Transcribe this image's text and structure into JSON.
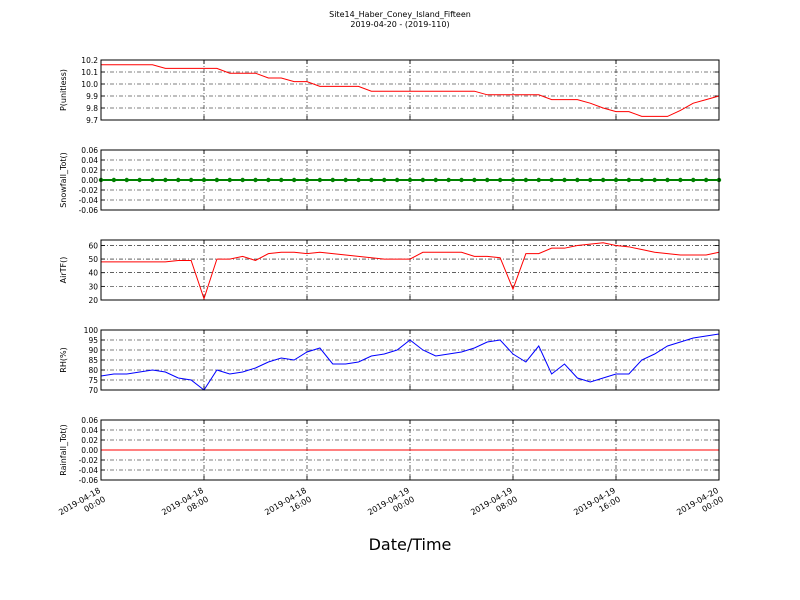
{
  "figure": {
    "title": "Site14_Haber_Coney_Island_Fifteen",
    "subtitle": "2019-04-20 - (2019-110)",
    "xlabel": "Date/Time",
    "xlim": [
      "2019-04-18 00:00",
      "2019-04-20 00:00"
    ],
    "xticks": [
      "2019-04-18 00:00",
      "2019-04-18 08:00",
      "2019-04-18 16:00",
      "2019-04-19 00:00",
      "2019-04-19 08:00",
      "2019-04-19 16:00",
      "2019-04-20 00:00"
    ]
  },
  "chart_data": [
    {
      "type": "line",
      "ylabel": "P(unitless)",
      "color": "#ff0000",
      "grid": true,
      "marker": false,
      "ylim": [
        9.7,
        10.2
      ],
      "yticks": [
        9.7,
        9.8,
        9.9,
        {
          "value": 10,
          "label": "10.0"
        },
        10.1,
        10.2
      ],
      "x": [
        "2019-04-18 00:00",
        "2019-04-18 01:00",
        "2019-04-18 02:00",
        "2019-04-18 03:00",
        "2019-04-18 04:00",
        "2019-04-18 05:00",
        "2019-04-18 06:00",
        "2019-04-18 07:00",
        "2019-04-18 08:00",
        "2019-04-18 09:00",
        "2019-04-18 10:00",
        "2019-04-18 11:00",
        "2019-04-18 12:00",
        "2019-04-18 13:00",
        "2019-04-18 14:00",
        "2019-04-18 15:00",
        "2019-04-18 16:00",
        "2019-04-18 17:00",
        "2019-04-18 18:00",
        "2019-04-18 19:00",
        "2019-04-18 20:00",
        "2019-04-18 21:00",
        "2019-04-18 22:00",
        "2019-04-18 23:00",
        "2019-04-19 00:00",
        "2019-04-19 01:00",
        "2019-04-19 02:00",
        "2019-04-19 03:00",
        "2019-04-19 04:00",
        "2019-04-19 05:00",
        "2019-04-19 06:00",
        "2019-04-19 07:00",
        "2019-04-19 08:00",
        "2019-04-19 09:00",
        "2019-04-19 10:00",
        "2019-04-19 11:00",
        "2019-04-19 12:00",
        "2019-04-19 13:00",
        "2019-04-19 14:00",
        "2019-04-19 15:00",
        "2019-04-19 16:00",
        "2019-04-19 17:00",
        "2019-04-19 18:00",
        "2019-04-19 19:00",
        "2019-04-19 20:00",
        "2019-04-19 21:00",
        "2019-04-19 22:00",
        "2019-04-19 23:00",
        "2019-04-20 00:00"
      ],
      "values": [
        10.16,
        10.16,
        10.16,
        10.16,
        10.16,
        10.13,
        10.13,
        10.13,
        10.13,
        10.13,
        10.09,
        10.09,
        10.09,
        10.05,
        10.05,
        10.02,
        10.02,
        9.98,
        9.98,
        9.98,
        9.98,
        9.94,
        9.94,
        9.94,
        9.94,
        9.94,
        9.94,
        9.94,
        9.94,
        9.94,
        9.91,
        9.91,
        9.91,
        9.91,
        9.91,
        9.87,
        9.87,
        9.87,
        9.84,
        9.8,
        9.77,
        9.77,
        9.73,
        9.73,
        9.73,
        9.78,
        9.84,
        9.87,
        9.9
      ]
    },
    {
      "type": "line",
      "ylabel": "Snowfall_Tot()",
      "color": "#008000",
      "grid": true,
      "marker": true,
      "ylim": [
        -0.06,
        0.06
      ],
      "yticks": [
        -0.06,
        -0.04,
        -0.02,
        {
          "value": 0,
          "label": "0.00"
        },
        0.02,
        0.04,
        0.06
      ],
      "x": [
        "2019-04-18 00:00",
        "2019-04-18 01:00",
        "2019-04-18 02:00",
        "2019-04-18 03:00",
        "2019-04-18 04:00",
        "2019-04-18 05:00",
        "2019-04-18 06:00",
        "2019-04-18 07:00",
        "2019-04-18 08:00",
        "2019-04-18 09:00",
        "2019-04-18 10:00",
        "2019-04-18 11:00",
        "2019-04-18 12:00",
        "2019-04-18 13:00",
        "2019-04-18 14:00",
        "2019-04-18 15:00",
        "2019-04-18 16:00",
        "2019-04-18 17:00",
        "2019-04-18 18:00",
        "2019-04-18 19:00",
        "2019-04-18 20:00",
        "2019-04-18 21:00",
        "2019-04-18 22:00",
        "2019-04-18 23:00",
        "2019-04-19 00:00",
        "2019-04-19 01:00",
        "2019-04-19 02:00",
        "2019-04-19 03:00",
        "2019-04-19 04:00",
        "2019-04-19 05:00",
        "2019-04-19 06:00",
        "2019-04-19 07:00",
        "2019-04-19 08:00",
        "2019-04-19 09:00",
        "2019-04-19 10:00",
        "2019-04-19 11:00",
        "2019-04-19 12:00",
        "2019-04-19 13:00",
        "2019-04-19 14:00",
        "2019-04-19 15:00",
        "2019-04-19 16:00",
        "2019-04-19 17:00",
        "2019-04-19 18:00",
        "2019-04-19 19:00",
        "2019-04-19 20:00",
        "2019-04-19 21:00",
        "2019-04-19 22:00",
        "2019-04-19 23:00",
        "2019-04-20 00:00"
      ],
      "values": [
        0,
        0,
        0,
        0,
        0,
        0,
        0,
        0,
        0,
        0,
        0,
        0,
        0,
        0,
        0,
        0,
        0,
        0,
        0,
        0,
        0,
        0,
        0,
        0,
        0,
        0,
        0,
        0,
        0,
        0,
        0,
        0,
        0,
        0,
        0,
        0,
        0,
        0,
        0,
        0,
        0,
        0,
        0,
        0,
        0,
        0,
        0,
        0,
        0
      ]
    },
    {
      "type": "line",
      "ylabel": "AirTF()",
      "color": "#ff0000",
      "grid": true,
      "marker": false,
      "ylim": [
        20,
        64
      ],
      "yticks": [
        20,
        30,
        40,
        50,
        60
      ],
      "x": [
        "2019-04-18 00:00",
        "2019-04-18 01:00",
        "2019-04-18 02:00",
        "2019-04-18 03:00",
        "2019-04-18 04:00",
        "2019-04-18 05:00",
        "2019-04-18 06:00",
        "2019-04-18 07:00",
        "2019-04-18 08:00",
        "2019-04-18 09:00",
        "2019-04-18 10:00",
        "2019-04-18 11:00",
        "2019-04-18 12:00",
        "2019-04-18 13:00",
        "2019-04-18 14:00",
        "2019-04-18 15:00",
        "2019-04-18 16:00",
        "2019-04-18 17:00",
        "2019-04-18 18:00",
        "2019-04-18 19:00",
        "2019-04-18 20:00",
        "2019-04-18 21:00",
        "2019-04-18 22:00",
        "2019-04-18 23:00",
        "2019-04-19 00:00",
        "2019-04-19 01:00",
        "2019-04-19 02:00",
        "2019-04-19 03:00",
        "2019-04-19 04:00",
        "2019-04-19 05:00",
        "2019-04-19 06:00",
        "2019-04-19 07:00",
        "2019-04-19 08:00",
        "2019-04-19 09:00",
        "2019-04-19 10:00",
        "2019-04-19 11:00",
        "2019-04-19 12:00",
        "2019-04-19 13:00",
        "2019-04-19 14:00",
        "2019-04-19 15:00",
        "2019-04-19 16:00",
        "2019-04-19 17:00",
        "2019-04-19 18:00",
        "2019-04-19 19:00",
        "2019-04-19 20:00",
        "2019-04-19 21:00",
        "2019-04-19 22:00",
        "2019-04-19 23:00",
        "2019-04-20 00:00"
      ],
      "values": [
        48,
        48,
        48,
        48,
        48,
        48,
        49,
        49,
        21,
        50,
        50,
        52,
        49,
        54,
        55,
        55,
        54,
        55,
        54,
        53,
        52,
        51,
        50,
        50,
        50,
        55,
        55,
        55,
        55,
        52,
        52,
        51,
        28,
        54,
        54,
        58,
        58,
        60,
        61,
        62,
        60,
        59,
        57,
        55,
        54,
        53,
        53,
        53,
        55
      ]
    },
    {
      "type": "line",
      "ylabel": "RH(%)",
      "color": "#0000ff",
      "grid": true,
      "marker": false,
      "ylim": [
        70,
        100
      ],
      "yticks": [
        70,
        75,
        80,
        85,
        90,
        95,
        100
      ],
      "x": [
        "2019-04-18 00:00",
        "2019-04-18 01:00",
        "2019-04-18 02:00",
        "2019-04-18 03:00",
        "2019-04-18 04:00",
        "2019-04-18 05:00",
        "2019-04-18 06:00",
        "2019-04-18 07:00",
        "2019-04-18 08:00",
        "2019-04-18 09:00",
        "2019-04-18 10:00",
        "2019-04-18 11:00",
        "2019-04-18 12:00",
        "2019-04-18 13:00",
        "2019-04-18 14:00",
        "2019-04-18 15:00",
        "2019-04-18 16:00",
        "2019-04-18 17:00",
        "2019-04-18 18:00",
        "2019-04-18 19:00",
        "2019-04-18 20:00",
        "2019-04-18 21:00",
        "2019-04-18 22:00",
        "2019-04-18 23:00",
        "2019-04-19 00:00",
        "2019-04-19 01:00",
        "2019-04-19 02:00",
        "2019-04-19 03:00",
        "2019-04-19 04:00",
        "2019-04-19 05:00",
        "2019-04-19 06:00",
        "2019-04-19 07:00",
        "2019-04-19 08:00",
        "2019-04-19 09:00",
        "2019-04-19 10:00",
        "2019-04-19 11:00",
        "2019-04-19 12:00",
        "2019-04-19 13:00",
        "2019-04-19 14:00",
        "2019-04-19 15:00",
        "2019-04-19 16:00",
        "2019-04-19 17:00",
        "2019-04-19 18:00",
        "2019-04-19 19:00",
        "2019-04-19 20:00",
        "2019-04-19 21:00",
        "2019-04-19 22:00",
        "2019-04-19 23:00",
        "2019-04-20 00:00"
      ],
      "values": [
        77,
        78,
        78,
        79,
        80,
        79,
        76,
        75,
        70,
        80,
        78,
        79,
        81,
        84,
        86,
        85,
        89,
        91,
        83,
        83,
        84,
        87,
        88,
        90,
        95,
        90,
        87,
        88,
        89,
        91,
        94,
        95,
        88,
        84,
        92,
        78,
        83,
        76,
        74,
        76,
        78,
        78,
        85,
        88,
        92,
        94,
        96,
        97,
        98
      ]
    },
    {
      "type": "line",
      "ylabel": "Rainfall_Tot()",
      "color": "#ff0000",
      "grid": true,
      "marker": false,
      "ylim": [
        -0.06,
        0.06
      ],
      "yticks": [
        -0.06,
        -0.04,
        -0.02,
        {
          "value": 0,
          "label": "0.00"
        },
        0.02,
        0.04,
        0.06
      ],
      "x": [
        "2019-04-18 00:00",
        "2019-04-18 01:00",
        "2019-04-18 02:00",
        "2019-04-18 03:00",
        "2019-04-18 04:00",
        "2019-04-18 05:00",
        "2019-04-18 06:00",
        "2019-04-18 07:00",
        "2019-04-18 08:00",
        "2019-04-18 09:00",
        "2019-04-18 10:00",
        "2019-04-18 11:00",
        "2019-04-18 12:00",
        "2019-04-18 13:00",
        "2019-04-18 14:00",
        "2019-04-18 15:00",
        "2019-04-18 16:00",
        "2019-04-18 17:00",
        "2019-04-18 18:00",
        "2019-04-18 19:00",
        "2019-04-18 20:00",
        "2019-04-18 21:00",
        "2019-04-18 22:00",
        "2019-04-18 23:00",
        "2019-04-19 00:00",
        "2019-04-19 01:00",
        "2019-04-19 02:00",
        "2019-04-19 03:00",
        "2019-04-19 04:00",
        "2019-04-19 05:00",
        "2019-04-19 06:00",
        "2019-04-19 07:00",
        "2019-04-19 08:00",
        "2019-04-19 09:00",
        "2019-04-19 10:00",
        "2019-04-19 11:00",
        "2019-04-19 12:00",
        "2019-04-19 13:00",
        "2019-04-19 14:00",
        "2019-04-19 15:00",
        "2019-04-19 16:00",
        "2019-04-19 17:00",
        "2019-04-19 18:00",
        "2019-04-19 19:00",
        "2019-04-19 20:00",
        "2019-04-19 21:00",
        "2019-04-19 22:00",
        "2019-04-19 23:00",
        "2019-04-20 00:00"
      ],
      "values": [
        0,
        0,
        0,
        0,
        0,
        0,
        0,
        0,
        0,
        0,
        0,
        0,
        0,
        0,
        0,
        0,
        0,
        0,
        0,
        0,
        0,
        0,
        0,
        0,
        0,
        0,
        0,
        0,
        0,
        0,
        0,
        0,
        0,
        0,
        0,
        0,
        0,
        0,
        0,
        0,
        0,
        0,
        0,
        0,
        0,
        0,
        0,
        0,
        0
      ]
    }
  ]
}
